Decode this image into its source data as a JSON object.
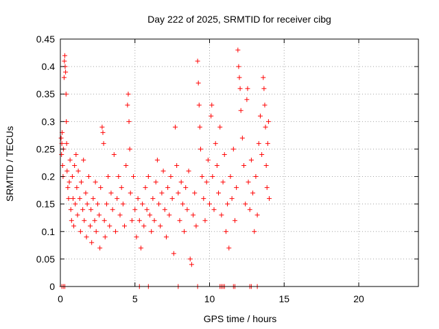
{
  "chart_data": {
    "type": "scatter",
    "title": "Day 222 of 2025, SRMTID for receiver cibg",
    "xlabel": "GPS time / hours",
    "ylabel": "SRMTID / TECUs",
    "xlim": [
      0,
      24
    ],
    "ylim": [
      0,
      0.45
    ],
    "x_ticks": [
      0,
      5,
      10,
      15,
      20
    ],
    "x_tick_labels": [
      "0",
      "5",
      "10",
      "15",
      "20"
    ],
    "y_ticks": [
      0,
      0.05,
      0.1,
      0.15,
      0.2,
      0.25,
      0.3,
      0.35,
      0.4,
      0.45
    ],
    "y_tick_labels": [
      "0",
      "0.05",
      "0.1",
      "0.15",
      "0.2",
      "0.25",
      "0.3",
      "0.35",
      "0.4",
      "0.45"
    ],
    "grid": true,
    "marker": "plus",
    "marker_color": "#ff0000",
    "series": [
      {
        "points": [
          [
            0.05,
            0.27
          ],
          [
            0.08,
            0.24
          ],
          [
            0.1,
            0.26
          ],
          [
            0.12,
            0.28
          ],
          [
            0.15,
            0.22
          ],
          [
            0.18,
            0.2
          ],
          [
            0.2,
            0.25
          ],
          [
            0.25,
            0.38
          ],
          [
            0.27,
            0.41
          ],
          [
            0.3,
            0.42
          ],
          [
            0.32,
            0.4
          ],
          [
            0.35,
            0.39
          ],
          [
            0.38,
            0.35
          ],
          [
            0.4,
            0.3
          ],
          [
            0.42,
            0.26
          ],
          [
            0.45,
            0.21
          ],
          [
            0.5,
            0.18
          ],
          [
            0.55,
            0.16
          ],
          [
            0.6,
            0.19
          ],
          [
            0.65,
            0.23
          ],
          [
            0.7,
            0.14
          ],
          [
            0.75,
            0.12
          ],
          [
            0.8,
            0.2
          ],
          [
            0.85,
            0.16
          ],
          [
            0.9,
            0.11
          ],
          [
            0.95,
            0.22
          ],
          [
            1.0,
            0.15
          ],
          [
            1.05,
            0.24
          ],
          [
            1.1,
            0.18
          ],
          [
            1.15,
            0.13
          ],
          [
            1.2,
            0.21
          ],
          [
            1.3,
            0.16
          ],
          [
            1.35,
            0.1
          ],
          [
            1.4,
            0.19
          ],
          [
            1.5,
            0.14
          ],
          [
            1.55,
            0.23
          ],
          [
            1.6,
            0.12
          ],
          [
            1.7,
            0.17
          ],
          [
            1.75,
            0.09
          ],
          [
            1.8,
            0.15
          ],
          [
            1.9,
            0.2
          ],
          [
            2.0,
            0.11
          ],
          [
            2.05,
            0.14
          ],
          [
            2.1,
            0.08
          ],
          [
            2.2,
            0.16
          ],
          [
            2.3,
            0.12
          ],
          [
            2.35,
            0.19
          ],
          [
            2.4,
            0.1
          ],
          [
            2.5,
            0.15
          ],
          [
            2.6,
            0.13
          ],
          [
            2.65,
            0.07
          ],
          [
            2.7,
            0.18
          ],
          [
            2.8,
            0.29
          ],
          [
            2.85,
            0.28
          ],
          [
            2.9,
            0.26
          ],
          [
            2.95,
            0.12
          ],
          [
            3.0,
            0.09
          ],
          [
            3.1,
            0.15
          ],
          [
            3.2,
            0.2
          ],
          [
            3.3,
            0.11
          ],
          [
            3.4,
            0.17
          ],
          [
            3.5,
            0.14
          ],
          [
            3.6,
            0.24
          ],
          [
            3.7,
            0.1
          ],
          [
            3.8,
            0.16
          ],
          [
            3.9,
            0.2
          ],
          [
            4.0,
            0.13
          ],
          [
            4.1,
            0.18
          ],
          [
            4.2,
            0.15
          ],
          [
            4.3,
            0.11
          ],
          [
            4.4,
            0.22
          ],
          [
            4.5,
            0.33
          ],
          [
            4.55,
            0.35
          ],
          [
            4.6,
            0.3
          ],
          [
            4.65,
            0.25
          ],
          [
            4.7,
            0.17
          ],
          [
            4.8,
            0.12
          ],
          [
            4.9,
            0.2
          ],
          [
            5.0,
            0.14
          ],
          [
            5.1,
            0.09
          ],
          [
            5.2,
            0.16
          ],
          [
            5.3,
            0.12
          ],
          [
            5.4,
            0.07
          ],
          [
            5.5,
            0.15
          ],
          [
            5.6,
            0.11
          ],
          [
            5.7,
            0.18
          ],
          [
            5.8,
            0.14
          ],
          [
            5.9,
            0.2
          ],
          [
            6.0,
            0.13
          ],
          [
            6.1,
            0.1
          ],
          [
            6.2,
            0.16
          ],
          [
            6.3,
            0.12
          ],
          [
            6.4,
            0.19
          ],
          [
            6.5,
            0.23
          ],
          [
            6.6,
            0.15
          ],
          [
            6.7,
            0.11
          ],
          [
            6.8,
            0.17
          ],
          [
            6.9,
            0.21
          ],
          [
            7.0,
            0.14
          ],
          [
            7.1,
            0.09
          ],
          [
            7.2,
            0.18
          ],
          [
            7.3,
            0.13
          ],
          [
            7.4,
            0.2
          ],
          [
            7.5,
            0.16
          ],
          [
            7.6,
            0.06
          ],
          [
            7.7,
            0.29
          ],
          [
            7.8,
            0.22
          ],
          [
            7.9,
            0.17
          ],
          [
            8.0,
            0.12
          ],
          [
            8.1,
            0.19
          ],
          [
            8.2,
            0.15
          ],
          [
            8.3,
            0.1
          ],
          [
            8.4,
            0.18
          ],
          [
            8.5,
            0.14
          ],
          [
            8.6,
            0.21
          ],
          [
            8.7,
            0.05
          ],
          [
            8.8,
            0.04
          ],
          [
            8.9,
            0.13
          ],
          [
            9.0,
            0.17
          ],
          [
            9.1,
            0.11
          ],
          [
            9.2,
            0.41
          ],
          [
            9.25,
            0.37
          ],
          [
            9.3,
            0.33
          ],
          [
            9.35,
            0.29
          ],
          [
            9.4,
            0.25
          ],
          [
            9.5,
            0.2
          ],
          [
            9.6,
            0.16
          ],
          [
            9.7,
            0.12
          ],
          [
            9.8,
            0.19
          ],
          [
            9.9,
            0.23
          ],
          [
            10.0,
            0.15
          ],
          [
            10.1,
            0.31
          ],
          [
            10.15,
            0.33
          ],
          [
            10.2,
            0.2
          ],
          [
            10.3,
            0.14
          ],
          [
            10.4,
            0.26
          ],
          [
            10.5,
            0.22
          ],
          [
            10.6,
            0.17
          ],
          [
            10.7,
            0.29
          ],
          [
            10.8,
            0.13
          ],
          [
            10.9,
            0.19
          ],
          [
            11.0,
            0.24
          ],
          [
            11.1,
            0.1
          ],
          [
            11.2,
            0.15
          ],
          [
            11.3,
            0.07
          ],
          [
            11.4,
            0.2
          ],
          [
            11.5,
            0.16
          ],
          [
            11.6,
            0.25
          ],
          [
            11.7,
            0.12
          ],
          [
            11.8,
            0.18
          ],
          [
            11.9,
            0.43
          ],
          [
            11.95,
            0.4
          ],
          [
            12.0,
            0.38
          ],
          [
            12.05,
            0.36
          ],
          [
            12.1,
            0.32
          ],
          [
            12.2,
            0.27
          ],
          [
            12.3,
            0.22
          ],
          [
            12.4,
            0.15
          ],
          [
            12.5,
            0.34
          ],
          [
            12.55,
            0.36
          ],
          [
            12.6,
            0.19
          ],
          [
            12.7,
            0.14
          ],
          [
            12.8,
            0.23
          ],
          [
            12.9,
            0.17
          ],
          [
            13.0,
            0.1
          ],
          [
            13.1,
            0.2
          ],
          [
            13.2,
            0.13
          ],
          [
            13.3,
            0.26
          ],
          [
            13.4,
            0.31
          ],
          [
            13.5,
            0.24
          ],
          [
            13.6,
            0.38
          ],
          [
            13.65,
            0.36
          ],
          [
            13.7,
            0.33
          ],
          [
            13.75,
            0.29
          ],
          [
            13.8,
            0.22
          ],
          [
            13.85,
            0.18
          ],
          [
            13.9,
            0.26
          ],
          [
            13.95,
            0.3
          ],
          [
            14.0,
            0.16
          ],
          [
            0.1,
            0
          ],
          [
            0.2,
            0
          ],
          [
            0.3,
            0
          ],
          [
            5.3,
            0
          ],
          [
            5.9,
            0
          ],
          [
            7.9,
            0
          ],
          [
            9.2,
            0
          ],
          [
            10.7,
            0
          ],
          [
            10.8,
            0
          ],
          [
            10.9,
            0
          ],
          [
            11.0,
            0
          ],
          [
            11.6,
            0
          ],
          [
            11.7,
            0
          ],
          [
            12.7,
            0
          ],
          [
            12.8,
            0
          ],
          [
            13.2,
            0
          ]
        ]
      }
    ]
  }
}
